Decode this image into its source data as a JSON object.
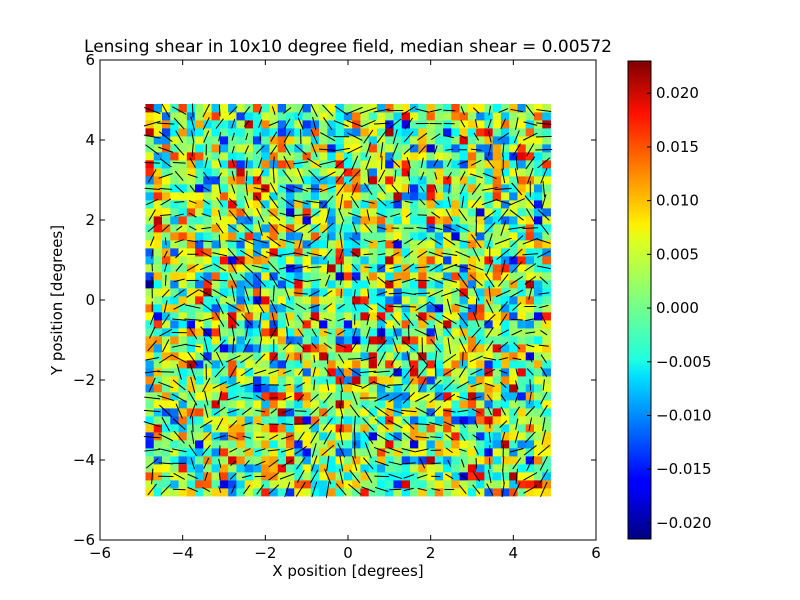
{
  "chart_data": {
    "type": "heatmap",
    "title": "Lensing shear in 10x10 degree field, median shear = 0.00572",
    "xlabel": "X position [degrees]",
    "ylabel": "Y position [degrees]",
    "xlim": [
      -6,
      6
    ],
    "ylim": [
      -6,
      6
    ],
    "x_ticks": [
      "−6",
      "−4",
      "−2",
      "0",
      "2",
      "4",
      "6"
    ],
    "y_ticks": [
      "−6",
      "−4",
      "−2",
      "0",
      "2",
      "4",
      "6"
    ],
    "grid_extent": [
      -4.9,
      4.9
    ],
    "grid_cells": 49,
    "color_range": [
      -0.0215,
      0.023
    ],
    "colorbar_ticks": [
      "0.020",
      "0.015",
      "0.010",
      "0.005",
      "0.000",
      "−0.005",
      "−0.010",
      "−0.015",
      "−0.020"
    ],
    "colorbar_tick_values": [
      0.02,
      0.015,
      0.01,
      0.005,
      0.0,
      -0.005,
      -0.01,
      -0.015,
      -0.02
    ],
    "median_shear": 0.00572,
    "colormap": "jet",
    "overlay": "shear whisker sticks"
  }
}
